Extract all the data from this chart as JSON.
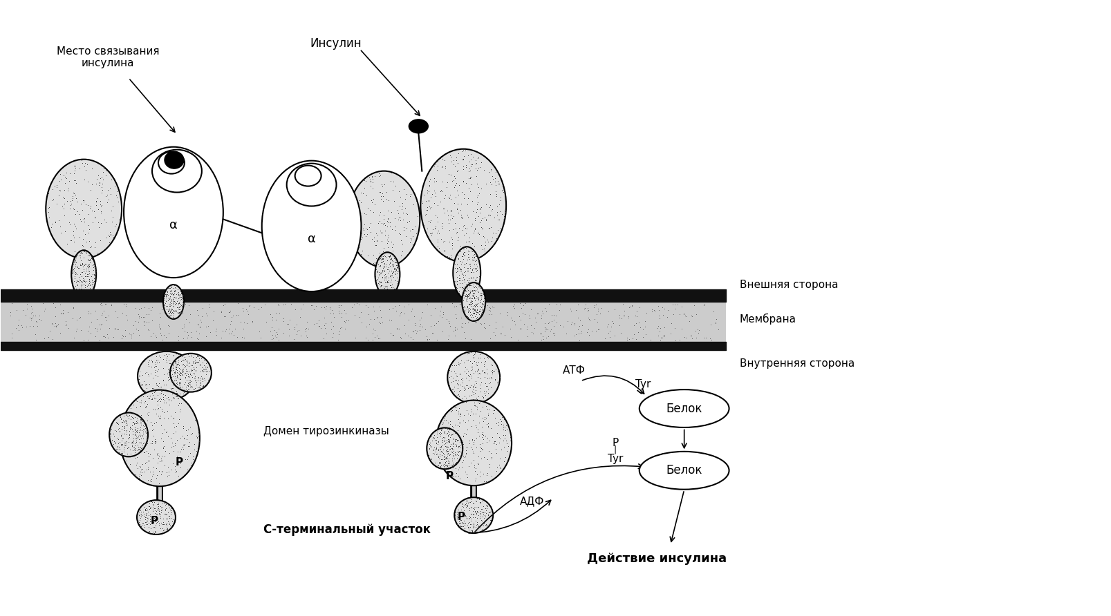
{
  "bg_color": "#ffffff",
  "figsize": [
    16.08,
    8.92
  ],
  "dpi": 100,
  "labels": {
    "mesto_svyaz": "Место связывания\nинсулина",
    "insulin": "Инсулин",
    "vnesh": "Внешняя сторона",
    "membrana": "Мембрана",
    "vnutr": "Внутренняя сторона",
    "domen": "Домен тирозинкиназы",
    "c_term": "С-терминальный участок",
    "atf": "АТФ",
    "adf": "АДФ",
    "tyr_top": "Tyr",
    "belok_top": "Белок",
    "p_tyr": "P\n|\nTyr",
    "belok_bot": "Белок",
    "action": "Действие инсулина",
    "alpha": "α"
  }
}
